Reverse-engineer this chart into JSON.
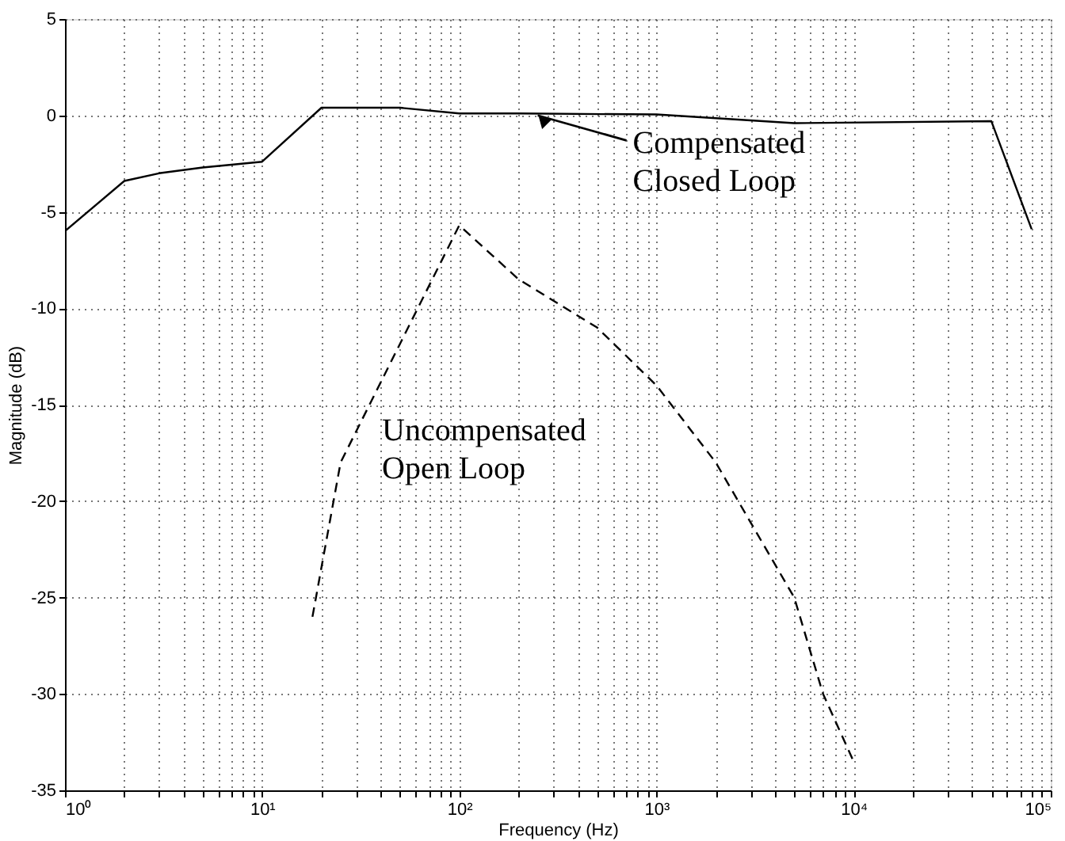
{
  "chart_data": {
    "type": "line",
    "xlabel": "Frequency (Hz)",
    "ylabel": "Magnitude (dB)",
    "log": "x",
    "grid": true,
    "legend": false,
    "xlim": [
      1,
      100000
    ],
    "ylim": [
      -35,
      5
    ],
    "xticks": [
      {
        "value": 1,
        "label": "10⁰"
      },
      {
        "value": 2,
        "label": null
      },
      {
        "value": 3,
        "label": null
      },
      {
        "value": 4,
        "label": null
      },
      {
        "value": 5,
        "label": null
      },
      {
        "value": 6,
        "label": null
      },
      {
        "value": 7,
        "label": null
      },
      {
        "value": 8,
        "label": null
      },
      {
        "value": 9,
        "label": null
      },
      {
        "value": 10,
        "label": "10¹"
      },
      {
        "value": 20,
        "label": null
      },
      {
        "value": 30,
        "label": null
      },
      {
        "value": 40,
        "label": null
      },
      {
        "value": 50,
        "label": null
      },
      {
        "value": 60,
        "label": null
      },
      {
        "value": 70,
        "label": null
      },
      {
        "value": 80,
        "label": null
      },
      {
        "value": 90,
        "label": null
      },
      {
        "value": 100,
        "label": "10²"
      },
      {
        "value": 200,
        "label": null
      },
      {
        "value": 300,
        "label": null
      },
      {
        "value": 400,
        "label": null
      },
      {
        "value": 500,
        "label": null
      },
      {
        "value": 600,
        "label": null
      },
      {
        "value": 700,
        "label": null
      },
      {
        "value": 800,
        "label": null
      },
      {
        "value": 900,
        "label": null
      },
      {
        "value": 1000,
        "label": "10³"
      },
      {
        "value": 2000,
        "label": null
      },
      {
        "value": 3000,
        "label": null
      },
      {
        "value": 4000,
        "label": null
      },
      {
        "value": 5000,
        "label": null
      },
      {
        "value": 6000,
        "label": null
      },
      {
        "value": 7000,
        "label": null
      },
      {
        "value": 8000,
        "label": null
      },
      {
        "value": 9000,
        "label": null
      },
      {
        "value": 10000,
        "label": "10⁴"
      },
      {
        "value": 20000,
        "label": null
      },
      {
        "value": 30000,
        "label": null
      },
      {
        "value": 40000,
        "label": null
      },
      {
        "value": 50000,
        "label": null
      },
      {
        "value": 60000,
        "label": null
      },
      {
        "value": 70000,
        "label": null
      },
      {
        "value": 80000,
        "label": null
      },
      {
        "value": 90000,
        "label": null
      },
      {
        "value": 100000,
        "label": "10⁵"
      }
    ],
    "yticks": [
      -35,
      -30,
      -25,
      -20,
      -15,
      -10,
      -5,
      0,
      5
    ],
    "series": [
      {
        "color": "#000000",
        "line_style": "solid",
        "x": [
          1,
          2,
          3,
          5,
          10,
          20,
          30,
          50,
          100,
          200,
          1000,
          5000,
          50000,
          80000
        ],
        "values": [
          -6,
          -3.4,
          -3,
          -2.7,
          -2.4,
          0.4,
          0.4,
          0.4,
          0.1,
          0.1,
          0.05,
          -0.4,
          -0.3,
          -5.9
        ]
      },
      {
        "color": "#000000",
        "line_style": "dashed",
        "x": [
          18,
          25,
          100,
          200,
          500,
          1000,
          2000,
          5000,
          7000,
          10000
        ],
        "values": [
          -26,
          -18,
          -5.7,
          -8.5,
          -11,
          -14,
          -18,
          -25,
          -30,
          -33.5
        ]
      }
    ],
    "annotations": [
      {
        "text": "Compensated Closed Loop",
        "x": 250,
        "y": 0
      },
      "Uncompensated Open Loop"
    ]
  }
}
